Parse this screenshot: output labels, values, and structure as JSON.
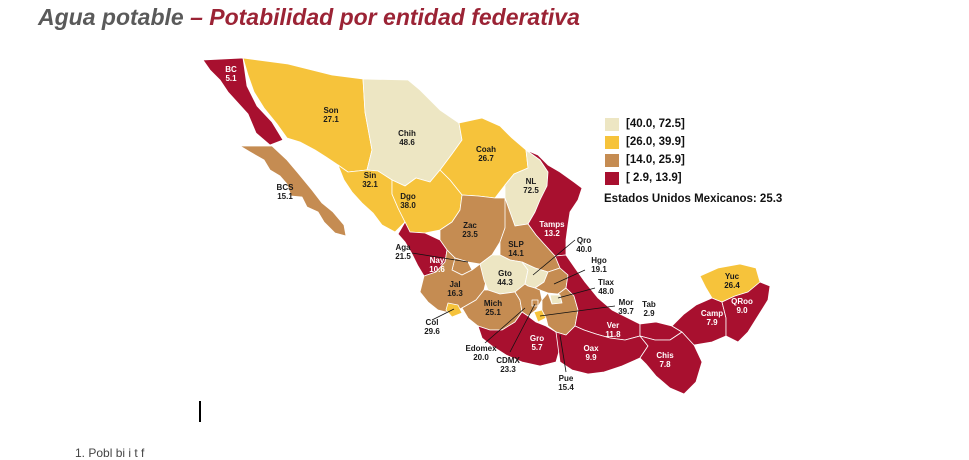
{
  "title": {
    "part1": "Agua potable",
    "part2": "– Potabilidad por entidad federativa"
  },
  "legend": [
    {
      "label": "[40.0, 72.5]",
      "color": "#ede6c3"
    },
    {
      "label": "[26.0, 39.9]",
      "color": "#f6c33b"
    },
    {
      "label": "[14.0, 25.9]",
      "color": "#c58c52"
    },
    {
      "label": "[  2.9, 13.9]",
      "color": "#a8102f"
    }
  ],
  "national_total": "Estados Unidos Mexicanos: 25.3",
  "states": {
    "bc": {
      "name": "BC",
      "value": "5.1"
    },
    "son": {
      "name": "Son",
      "value": "27.1"
    },
    "chih": {
      "name": "Chih",
      "value": "48.6"
    },
    "coah": {
      "name": "Coah",
      "value": "26.7"
    },
    "nl": {
      "name": "NL",
      "value": "72.5"
    },
    "bcs": {
      "name": "BCS",
      "value": "15.1"
    },
    "sin": {
      "name": "Sin",
      "value": "32.1"
    },
    "dgo": {
      "name": "Dgo",
      "value": "38.0"
    },
    "tamps": {
      "name": "Tamps",
      "value": "13.2"
    },
    "zac": {
      "name": "Zac",
      "value": "23.5"
    },
    "slp": {
      "name": "SLP",
      "value": "14.1"
    },
    "qro": {
      "name": "Qro",
      "value": "40.0"
    },
    "aga": {
      "name": "Aga",
      "value": "21.5"
    },
    "nay": {
      "name": "Nay",
      "value": "10.6"
    },
    "hgo": {
      "name": "Hgo",
      "value": "19.1"
    },
    "gto": {
      "name": "Gto",
      "value": "44.3"
    },
    "jal": {
      "name": "Jal",
      "value": "16.3"
    },
    "tlax": {
      "name": "Tlax",
      "value": "48.0"
    },
    "mor": {
      "name": "Mor",
      "value": "39.7"
    },
    "tab": {
      "name": "Tab",
      "value": "2.9"
    },
    "yuc": {
      "name": "Yuc",
      "value": "26.4"
    },
    "qroo": {
      "name": "QRoo",
      "value": "9.0"
    },
    "camp": {
      "name": "Camp",
      "value": "7.9"
    },
    "mich": {
      "name": "Mich",
      "value": "25.1"
    },
    "col": {
      "name": "Col",
      "value": "29.6"
    },
    "ver": {
      "name": "Ver",
      "value": "11.8"
    },
    "edomex": {
      "name": "Edomex",
      "value": "20.0"
    },
    "gro": {
      "name": "Gro",
      "value": "5.7"
    },
    "oax": {
      "name": "Oax",
      "value": "9.9"
    },
    "chis": {
      "name": "Chis",
      "value": "7.8"
    },
    "cdmx": {
      "name": "CDMX",
      "value": "23.3"
    },
    "pue": {
      "name": "Pue",
      "value": "15.4"
    }
  },
  "footnote": "1.    Pobl  bi  i  t    f"
}
